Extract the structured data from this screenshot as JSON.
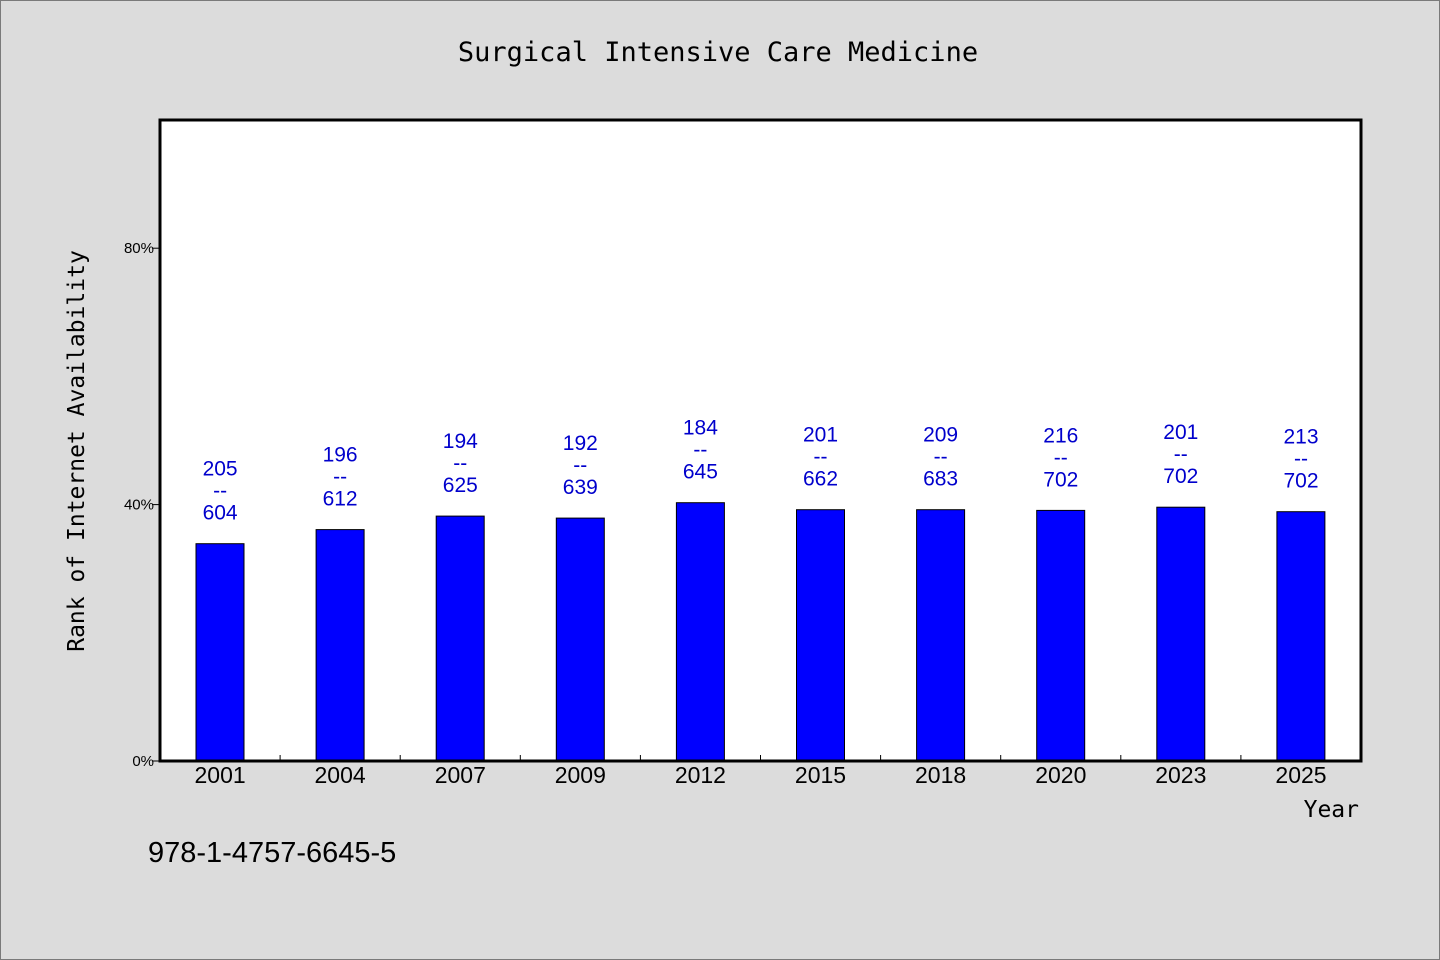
{
  "chart_data": {
    "type": "bar",
    "title": "Surgical Intensive Care Medicine",
    "xlabel": "Year",
    "ylabel": "Rank of Internet Availability",
    "categories": [
      "2001",
      "2004",
      "2007",
      "2009",
      "2012",
      "2015",
      "2018",
      "2020",
      "2023",
      "2025"
    ],
    "series": [
      {
        "values": [
          33.9,
          36.1,
          38.2,
          37.9,
          40.3,
          39.2,
          39.2,
          39.1,
          39.6,
          38.9
        ],
        "labels_top": [
          "205",
          "196",
          "194",
          "192",
          "184",
          "201",
          "209",
          "216",
          "201",
          "213"
        ],
        "labels_separator": "--",
        "labels_bottom": [
          "604",
          "612",
          "625",
          "639",
          "645",
          "662",
          "683",
          "702",
          "702",
          "702"
        ]
      }
    ],
    "ylim": [
      0,
      100
    ],
    "yticks": [
      0,
      40,
      80
    ],
    "ytick_labels": [
      "0%",
      "40%",
      "80%"
    ],
    "grid": false,
    "bar_color": "#0000ff",
    "label_color": "#0000cc",
    "background_color": "#dcdcdc",
    "plot_background_color": "#ffffff"
  },
  "footer_text": "978-1-4757-6645-5"
}
